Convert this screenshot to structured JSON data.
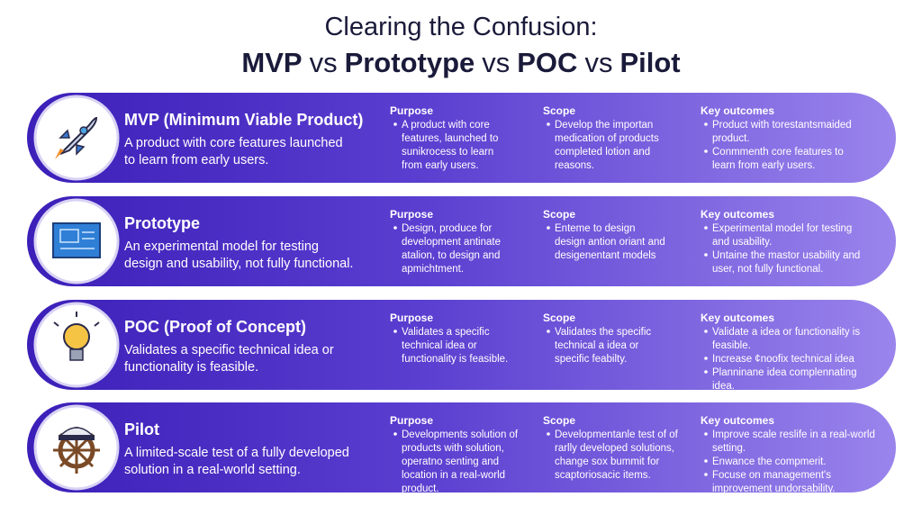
{
  "header": {
    "title_line1": "Clearing the Confusion:",
    "title_line2": [
      "MVP",
      "vs",
      "Prototype",
      "vs",
      "POC",
      "vs",
      "Pilot"
    ]
  },
  "columns": [
    "Purpose",
    "Scope",
    "Key outcomes"
  ],
  "rows": [
    {
      "name": "MVP (Minimum Viable Product)",
      "description": [
        "A product with core features launched",
        "to learn from early users."
      ],
      "purpose": [
        [
          "A product with core",
          "features, launched to",
          "sunikrocess to learn",
          "from early users."
        ]
      ],
      "scope": [
        [
          "Develop the importan",
          "medication of products",
          "completed lotion and",
          "reasons."
        ]
      ],
      "outcomes": [
        [
          "Product with torestantsmaided",
          "product."
        ],
        [
          "Conmmenth core features to",
          "learn from early users."
        ]
      ]
    },
    {
      "name": "Prototype",
      "description": [
        "An experimental model for testing",
        "design and usability, not fully functional."
      ],
      "purpose": [
        [
          "Design, produce for",
          "development antinate",
          "atalion, to design and",
          "apmichtment."
        ]
      ],
      "scope": [
        [
          "Enteme to design",
          "design antion oriant and",
          "desigenentant models"
        ]
      ],
      "outcomes": [
        [
          "Experimental model for testing",
          "and usability."
        ],
        [
          "Untaine the mastor usability and",
          "user, not fully functional."
        ]
      ]
    },
    {
      "name": "POC (Proof of Concept)",
      "description": [
        "Validates a specific technical idea or",
        "functionality is feasible."
      ],
      "purpose": [
        [
          "Validates a specific",
          "technical idea or",
          "functionality is feasible."
        ]
      ],
      "scope": [
        [
          "Validates the specific",
          "technical a idea or",
          "specific feabilty."
        ]
      ],
      "outcomes": [
        [
          "Validate a idea or functionality is",
          "feasible."
        ],
        [
          "Increase ¢noofix technical idea"
        ],
        [
          "Planninane idea complennating",
          "idea."
        ]
      ]
    },
    {
      "name": "Pilot",
      "description": [
        "A limited-scale test of a fully developed",
        "solution in a real-world setting."
      ],
      "purpose": [
        [
          "Developments solution of",
          "products with solution,",
          "operatno senting and",
          "location in a real-world",
          "product."
        ]
      ],
      "scope": [
        [
          "Developmentanle test of of",
          "rarlly developed solutions,",
          "change sox bummit for",
          "scaptoriosacic items."
        ]
      ],
      "outcomes": [
        [
          "Improve scale reslife in a real-world",
          "setting."
        ],
        [
          "Enwance the compmerit."
        ],
        [
          "Focuse on management's",
          "improvement undorsability."
        ]
      ]
    }
  ]
}
